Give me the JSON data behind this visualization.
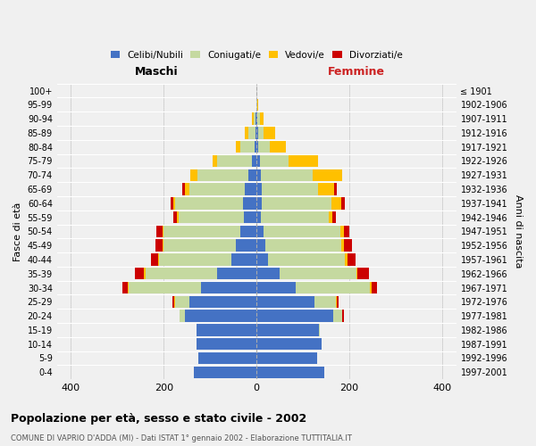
{
  "age_groups": [
    "0-4",
    "5-9",
    "10-14",
    "15-19",
    "20-24",
    "25-29",
    "30-34",
    "35-39",
    "40-44",
    "45-49",
    "50-54",
    "55-59",
    "60-64",
    "65-69",
    "70-74",
    "75-79",
    "80-84",
    "85-89",
    "90-94",
    "95-99",
    "100+"
  ],
  "birth_years": [
    "1997-2001",
    "1992-1996",
    "1987-1991",
    "1982-1986",
    "1977-1981",
    "1972-1976",
    "1967-1971",
    "1962-1966",
    "1957-1961",
    "1952-1956",
    "1947-1951",
    "1942-1946",
    "1937-1941",
    "1932-1936",
    "1927-1931",
    "1922-1926",
    "1917-1921",
    "1912-1916",
    "1907-1911",
    "1902-1906",
    "≤ 1901"
  ],
  "males": {
    "celibi": [
      135,
      125,
      130,
      130,
      155,
      145,
      120,
      85,
      55,
      45,
      35,
      28,
      30,
      25,
      18,
      10,
      5,
      3,
      2,
      0,
      0
    ],
    "coniugati": [
      0,
      0,
      0,
      0,
      10,
      30,
      155,
      155,
      155,
      155,
      165,
      140,
      145,
      120,
      110,
      75,
      30,
      15,
      5,
      1,
      0
    ],
    "vedovi": [
      0,
      0,
      0,
      0,
      0,
      2,
      2,
      2,
      2,
      3,
      3,
      3,
      5,
      10,
      15,
      10,
      10,
      8,
      3,
      0,
      0
    ],
    "divorziati": [
      0,
      0,
      0,
      0,
      0,
      5,
      12,
      20,
      15,
      15,
      12,
      8,
      5,
      5,
      0,
      0,
      0,
      0,
      0,
      0,
      0
    ]
  },
  "females": {
    "nubili": [
      145,
      130,
      140,
      135,
      165,
      125,
      85,
      50,
      25,
      18,
      15,
      10,
      12,
      12,
      10,
      8,
      4,
      3,
      2,
      0,
      0
    ],
    "coniugate": [
      0,
      0,
      0,
      2,
      20,
      45,
      160,
      165,
      165,
      165,
      165,
      145,
      150,
      120,
      110,
      60,
      25,
      12,
      5,
      1,
      0
    ],
    "vedove": [
      0,
      0,
      0,
      0,
      0,
      2,
      3,
      3,
      5,
      5,
      8,
      8,
      20,
      35,
      65,
      65,
      35,
      25,
      8,
      2,
      0
    ],
    "divorziate": [
      0,
      0,
      0,
      0,
      3,
      5,
      12,
      25,
      18,
      18,
      12,
      8,
      8,
      5,
      0,
      0,
      0,
      0,
      0,
      0,
      0
    ]
  },
  "color_celibi": "#4472c4",
  "color_coniugati": "#c5d9a0",
  "color_vedovi": "#ffc000",
  "color_divorziati": "#cc0000",
  "title_bold": "Popolazione per età, sesso e stato civile - 2002",
  "subtitle": "COMUNE DI VAPRIO D'ADDA (MI) - Dati ISTAT 1° gennaio 2002 - Elaborazione TUTTITALIA.IT",
  "xlabel_maschi": "Maschi",
  "xlabel_femmine": "Femmine",
  "ylabel_left": "Fasce di età",
  "ylabel_right": "Anni di nascita",
  "xlim": 430,
  "background_color": "#f0f0f0",
  "bar_height": 0.85,
  "grid_color": "#cccccc"
}
